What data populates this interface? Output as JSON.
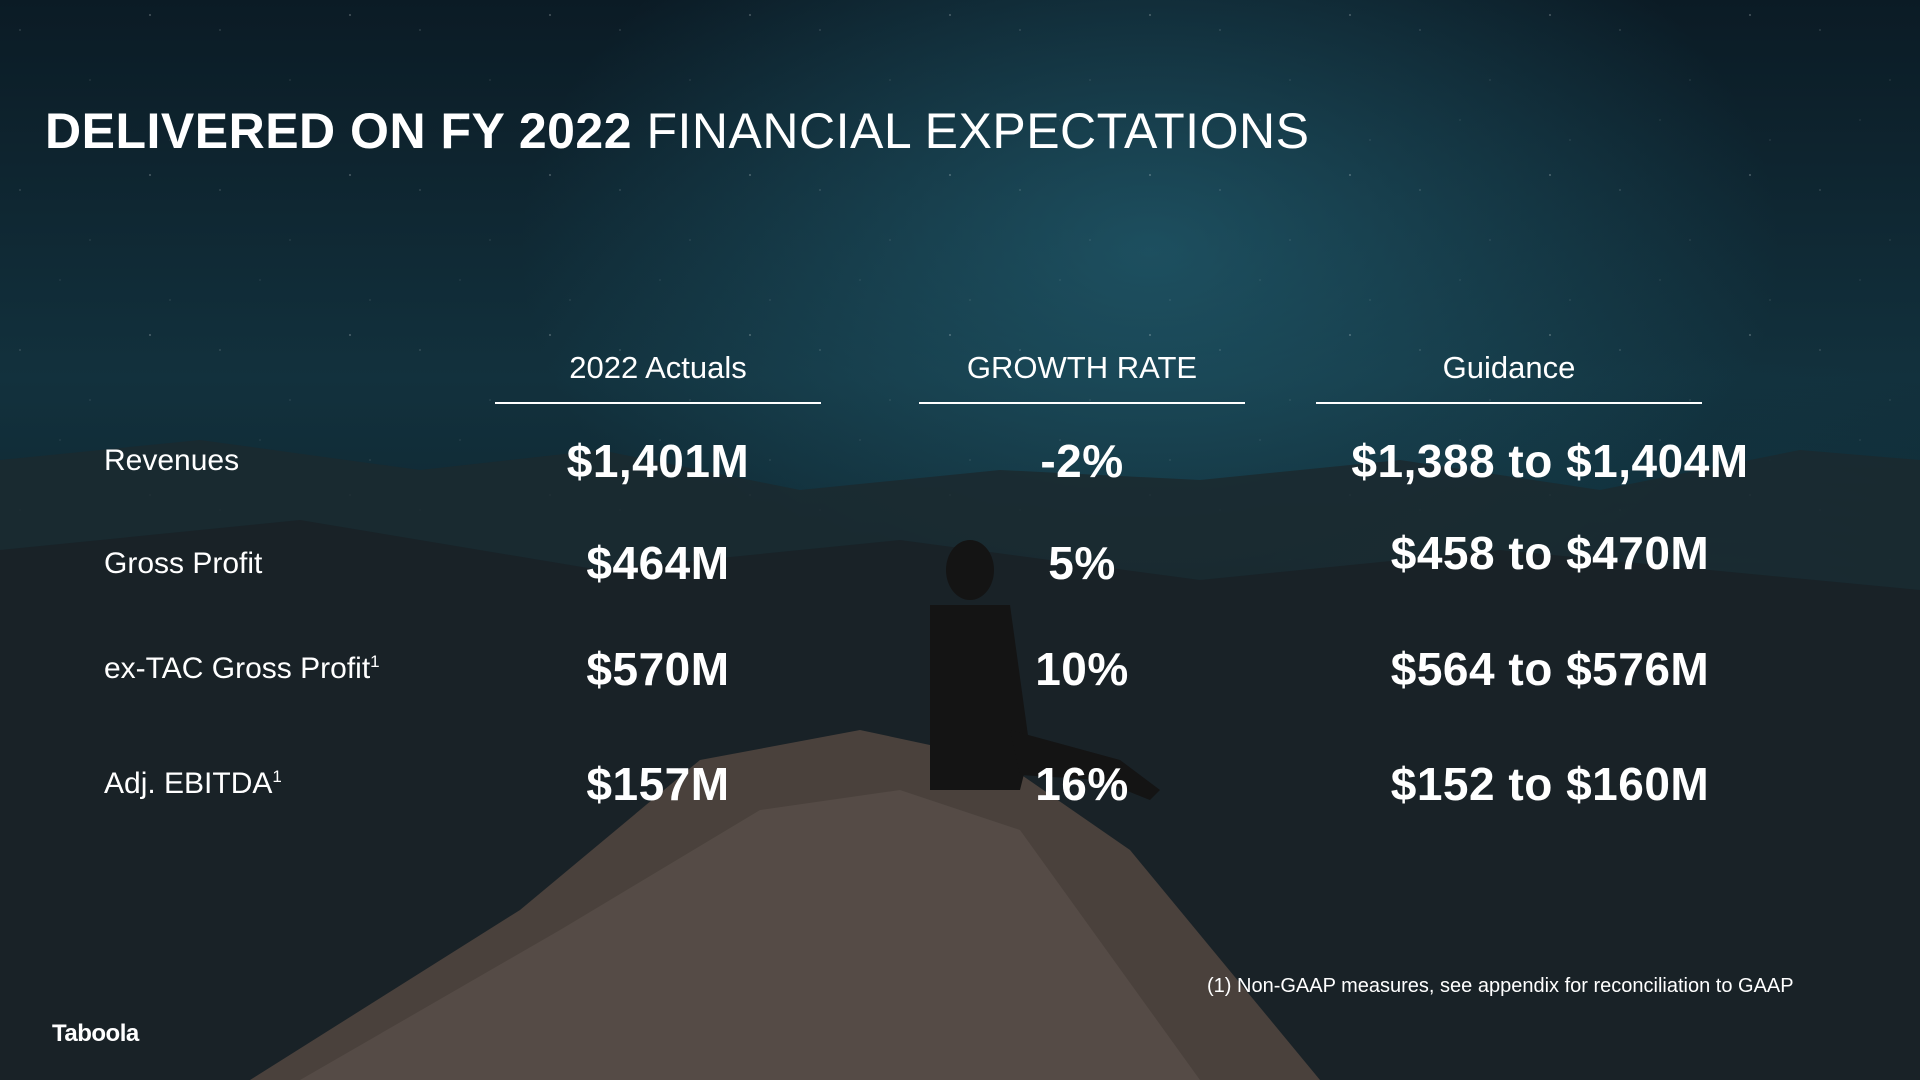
{
  "title": {
    "bold": "DELIVERED ON FY 2022",
    "light": "FINANCIAL EXPECTATIONS"
  },
  "columns": [
    "2022 Actuals",
    "GROWTH RATE",
    "Guidance"
  ],
  "rows": [
    {
      "label": "Revenues",
      "sup": "",
      "actual": "$1,401M",
      "growth": "-2%",
      "guidance": "$1,388 to $1,404M"
    },
    {
      "label": "Gross Profit",
      "sup": "",
      "actual": "$464M",
      "growth": "5%",
      "guidance": "$458 to $470M"
    },
    {
      "label": "ex-TAC Gross Profit",
      "sup": "1",
      "actual": "$570M",
      "growth": "10%",
      "guidance": "$564 to $576M"
    },
    {
      "label": "Adj. EBITDA",
      "sup": "1",
      "actual": "$157M",
      "growth": "16%",
      "guidance": "$152 to $160M"
    }
  ],
  "footnote": "(1)  Non-GAAP measures, see appendix for reconciliation to GAAP",
  "logo": "Taboola"
}
